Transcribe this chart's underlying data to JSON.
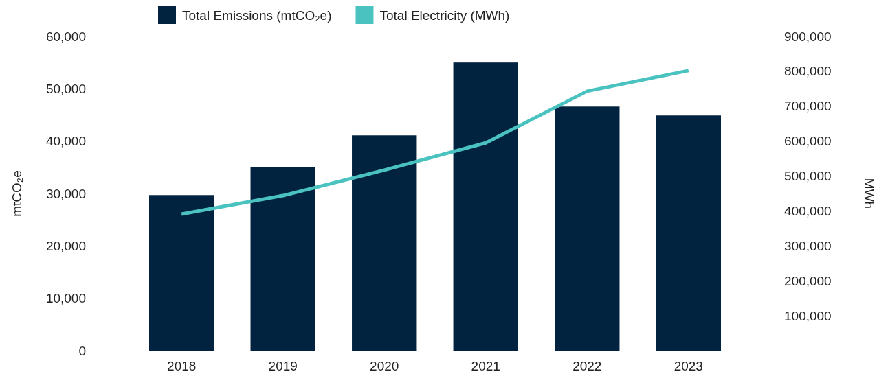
{
  "chart_data": {
    "type": "bar",
    "categories": [
      "2018",
      "2019",
      "2020",
      "2021",
      "2022",
      "2023"
    ],
    "series": [
      {
        "name": "Total Emissions (mtCO₂e)",
        "type": "bar",
        "color": "#012340",
        "values": [
          29700,
          35000,
          41100,
          55000,
          46600,
          44900
        ]
      },
      {
        "name": "Total Electricity (MWh)",
        "type": "line",
        "axis": "y2",
        "color": "#4ac2c0",
        "values": [
          391000,
          444000,
          517000,
          595000,
          743000,
          802000
        ]
      }
    ],
    "ylabel": "mtCO₂e",
    "y2label": "MWh",
    "ylim": [
      0,
      60000
    ],
    "yticks": [
      0,
      {
        "value": 10000,
        "label": "10,000"
      },
      {
        "value": 20000,
        "label": "20,000"
      },
      {
        "value": 30000,
        "label": "30,000"
      },
      {
        "value": 40000,
        "label": "40,000"
      },
      {
        "value": 50000,
        "label": "50,000"
      },
      {
        "value": 60000,
        "label": "60,000"
      }
    ],
    "y2lim": [
      0,
      900000
    ],
    "y2ticks": [
      {
        "value": 100000,
        "label": "100,000"
      },
      {
        "value": 200000,
        "label": "200,000"
      },
      {
        "value": 300000,
        "label": "300,000"
      },
      {
        "value": 400000,
        "label": "400,000"
      },
      {
        "value": 500000,
        "label": "500,000"
      },
      {
        "value": 600000,
        "label": "600,000"
      },
      {
        "value": 700000,
        "label": "700,000"
      },
      {
        "value": 800000,
        "label": "800,000"
      },
      {
        "value": 900000,
        "label": "900,000"
      }
    ],
    "legend": "top",
    "grid": false,
    "marker": "none",
    "line_style": "solid"
  }
}
